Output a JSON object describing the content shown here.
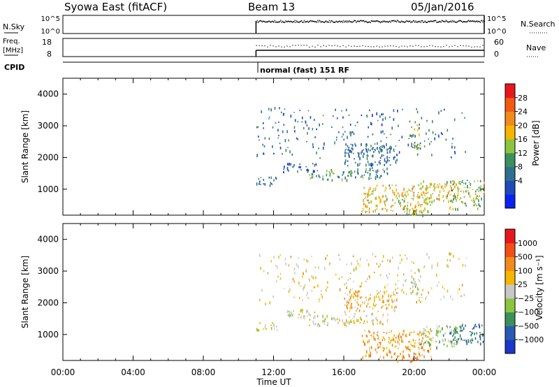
{
  "header": {
    "station": "Syowa East (fitACF)",
    "beam": "Beam 13",
    "date": "05/Jan/2016"
  },
  "status_panels": {
    "nsky": {
      "label": "N.Sky",
      "ticks": [
        "10^5",
        "10^0"
      ]
    },
    "freq": {
      "label_line1": "Freq.",
      "label_line2": "[MHz]",
      "ticks": [
        "18",
        "8"
      ]
    },
    "cpid": {
      "label": "CPID",
      "mode_text": "normal (fast) 151 RF"
    },
    "nsearch": {
      "label": "N.Search",
      "ticks": [
        "10^5",
        "10^0"
      ]
    },
    "nave": {
      "label": "Nave",
      "ticks": [
        "60",
        "0"
      ]
    }
  },
  "x_axis": {
    "label": "Time UT",
    "ticks": [
      "00:00",
      "04:00",
      "08:00",
      "12:00",
      "16:00",
      "20:00",
      "00:00"
    ]
  },
  "colors": {
    "power_scale": [
      "#0a22f0",
      "#1e4bb8",
      "#2f6f8e",
      "#3d8f5c",
      "#8bc53f",
      "#f6b500",
      "#f28a1e",
      "#f25a12",
      "#e8171e"
    ],
    "velocity_scale": [
      "#e8171e",
      "#f05018",
      "#f28a1e",
      "#f6b500",
      "#c8c8c8",
      "#8bc53f",
      "#3d8f5c",
      "#2a5bb0",
      "#1a37c8"
    ]
  },
  "chart_data": [
    {
      "type": "heatmap",
      "title": "Power",
      "xlabel": "Time UT",
      "ylabel": "Slant Range [km]",
      "xlim": [
        0,
        24
      ],
      "ylim": [
        180,
        4500
      ],
      "y_ticks": [
        "1000",
        "2000",
        "3000",
        "4000"
      ],
      "colorbar": {
        "label": "Power [dB]",
        "ticks": [
          "28",
          "24",
          "20",
          "16",
          "12",
          "8",
          "4"
        ],
        "range": [
          0,
          30
        ]
      },
      "data_start_hour": 11.0,
      "clusters": [
        {
          "t": [
            11.0,
            12.2
          ],
          "r": [
            1150,
            1400
          ],
          "value": 8
        },
        {
          "t": [
            12.5,
            14.5
          ],
          "r": [
            1550,
            1850
          ],
          "value": 6
        },
        {
          "t": [
            14.0,
            16.5
          ],
          "r": [
            1300,
            1650
          ],
          "value": 12
        },
        {
          "t": [
            16.2,
            18.5
          ],
          "r": [
            1350,
            1700
          ],
          "value": 10
        },
        {
          "t": [
            16.0,
            19.0
          ],
          "r": [
            1750,
            2450
          ],
          "value": 8
        },
        {
          "t": [
            17.0,
            21.0
          ],
          "r": [
            300,
            1150
          ],
          "value": 18
        },
        {
          "t": [
            19.0,
            20.5
          ],
          "r": [
            180,
            400
          ],
          "value": 16
        },
        {
          "t": [
            20.2,
            22.5
          ],
          "r": [
            600,
            1300
          ],
          "value": 18
        },
        {
          "t": [
            22.0,
            24.0
          ],
          "r": [
            400,
            1300
          ],
          "value": 14
        },
        {
          "t": [
            19.8,
            20.3
          ],
          "r": [
            2300,
            3100
          ],
          "value": 14
        },
        {
          "t": [
            11.0,
            23.0
          ],
          "r": [
            2000,
            3600
          ],
          "value": 8
        }
      ]
    },
    {
      "type": "heatmap",
      "title": "Velocity",
      "xlabel": "Time UT",
      "ylabel": "Slant Range [km]",
      "xlim": [
        0,
        24
      ],
      "ylim": [
        180,
        4500
      ],
      "y_ticks": [
        "1000",
        "2000",
        "3000",
        "4000"
      ],
      "colorbar": {
        "label": "Velocity [m s⁻¹]",
        "ticks": [
          "1000",
          "500",
          "100",
          "25",
          "−25",
          "−100",
          "−500",
          "−1000"
        ],
        "range": [
          -1200,
          1200
        ]
      },
      "data_start_hour": 11.0,
      "clusters": [
        {
          "t": [
            11.0,
            12.2
          ],
          "r": [
            1150,
            1400
          ],
          "value": 40
        },
        {
          "t": [
            12.5,
            14.5
          ],
          "r": [
            1550,
            1850
          ],
          "value": 0
        },
        {
          "t": [
            14.0,
            16.5
          ],
          "r": [
            1300,
            1650
          ],
          "value": -30
        },
        {
          "t": [
            16.2,
            18.5
          ],
          "r": [
            1350,
            1700
          ],
          "value": 60
        },
        {
          "t": [
            16.0,
            19.0
          ],
          "r": [
            1750,
            2450
          ],
          "value": 300
        },
        {
          "t": [
            17.0,
            21.0
          ],
          "r": [
            300,
            1150
          ],
          "value": 400
        },
        {
          "t": [
            19.0,
            20.5
          ],
          "r": [
            180,
            400
          ],
          "value": 600
        },
        {
          "t": [
            20.2,
            22.5
          ],
          "r": [
            600,
            1300
          ],
          "value": -300
        },
        {
          "t": [
            22.0,
            24.0
          ],
          "r": [
            700,
            1350
          ],
          "value": -700
        },
        {
          "t": [
            19.8,
            20.3
          ],
          "r": [
            2300,
            3100
          ],
          "value": -200
        },
        {
          "t": [
            11.0,
            23.0
          ],
          "r": [
            2000,
            3600
          ],
          "value": 150
        }
      ]
    }
  ]
}
